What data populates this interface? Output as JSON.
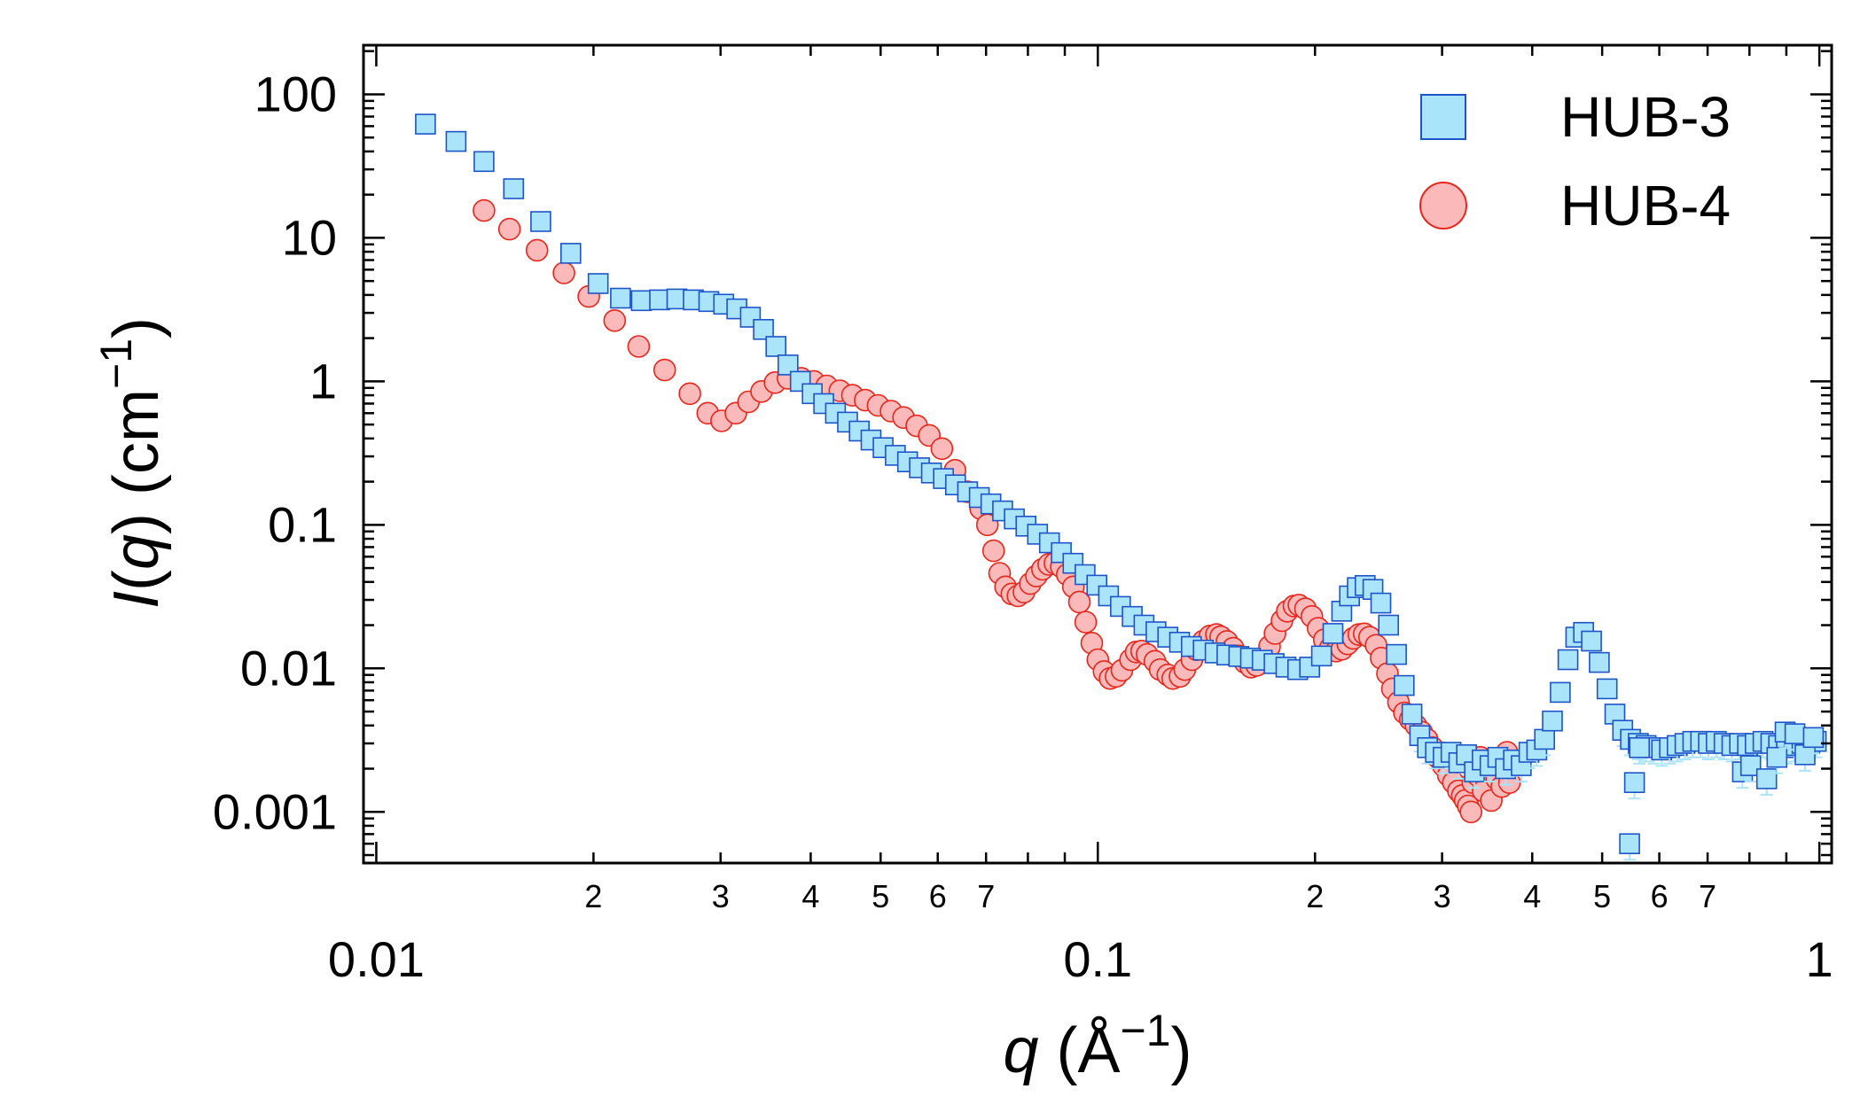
{
  "chart_data": {
    "type": "scatter",
    "xscale": "log",
    "yscale": "log",
    "xlim": [
      0.0096,
      1.04
    ],
    "ylim": [
      0.00044,
      220
    ],
    "xlabel": {
      "var": "q",
      "open": " (Å",
      "exp": "−1",
      "close": ")"
    },
    "ylabel": {
      "var": "I",
      "paren_open": "(",
      "arg": "q",
      "paren_close": ")",
      "unit_open": " (cm",
      "exp": "−1",
      "close": ")"
    },
    "x_major_ticks": [
      {
        "value": 0.01,
        "label": "0.01"
      },
      {
        "value": 0.1,
        "label": "0.1"
      },
      {
        "value": 1,
        "label": "1"
      }
    ],
    "x_minor_labels": [
      {
        "value": 0.02,
        "label": "2"
      },
      {
        "value": 0.03,
        "label": "3"
      },
      {
        "value": 0.04,
        "label": "4"
      },
      {
        "value": 0.05,
        "label": "5"
      },
      {
        "value": 0.06,
        "label": "6"
      },
      {
        "value": 0.07,
        "label": "7"
      },
      {
        "value": 0.2,
        "label": "2"
      },
      {
        "value": 0.3,
        "label": "3"
      },
      {
        "value": 0.4,
        "label": "4"
      },
      {
        "value": 0.5,
        "label": "5"
      },
      {
        "value": 0.6,
        "label": "6"
      },
      {
        "value": 0.7,
        "label": "7"
      }
    ],
    "y_major_ticks": [
      {
        "value": 0.001,
        "label": "0.001"
      },
      {
        "value": 0.01,
        "label": "0.01"
      },
      {
        "value": 0.1,
        "label": "0.1"
      },
      {
        "value": 1,
        "label": "1"
      },
      {
        "value": 10,
        "label": "10"
      },
      {
        "value": 100,
        "label": "100"
      }
    ],
    "legend": {
      "position": "top-right"
    },
    "series": [
      {
        "name": "HUB-4",
        "marker": "circle",
        "fill": "#fbb9b9",
        "edge": "#e8261c",
        "points": [
          [
            0.0141,
            15.5
          ],
          [
            0.0153,
            11.5
          ],
          [
            0.0167,
            8.2
          ],
          [
            0.0182,
            5.7
          ],
          [
            0.0197,
            3.9
          ],
          [
            0.0214,
            2.65
          ],
          [
            0.0231,
            1.75
          ],
          [
            0.0251,
            1.2
          ],
          [
            0.0272,
            0.82
          ],
          [
            0.0288,
            0.6
          ],
          [
            0.0301,
            0.53
          ],
          [
            0.0315,
            0.6
          ],
          [
            0.0328,
            0.72
          ],
          [
            0.0342,
            0.85
          ],
          [
            0.0357,
            0.98
          ],
          [
            0.0372,
            1.05
          ],
          [
            0.0388,
            1.05
          ],
          [
            0.0404,
            1.0
          ],
          [
            0.0421,
            0.93
          ],
          [
            0.0439,
            0.86
          ],
          [
            0.0457,
            0.8
          ],
          [
            0.0476,
            0.74
          ],
          [
            0.0496,
            0.68
          ],
          [
            0.0517,
            0.62
          ],
          [
            0.0538,
            0.56
          ],
          [
            0.0561,
            0.49
          ],
          [
            0.0584,
            0.42
          ],
          [
            0.0608,
            0.34
          ],
          [
            0.0634,
            0.24
          ],
          [
            0.066,
            0.17
          ],
          [
            0.0688,
            0.13
          ],
          [
            0.0703,
            0.1
          ],
          [
            0.0717,
            0.066
          ],
          [
            0.0731,
            0.046
          ],
          [
            0.0745,
            0.037
          ],
          [
            0.076,
            0.033
          ],
          [
            0.0775,
            0.032
          ],
          [
            0.079,
            0.034
          ],
          [
            0.0806,
            0.039
          ],
          [
            0.0822,
            0.044
          ],
          [
            0.0838,
            0.049
          ],
          [
            0.0855,
            0.053
          ],
          [
            0.0872,
            0.054
          ],
          [
            0.089,
            0.051
          ],
          [
            0.0907,
            0.045
          ],
          [
            0.0925,
            0.037
          ],
          [
            0.0943,
            0.029
          ],
          [
            0.0962,
            0.021
          ],
          [
            0.0981,
            0.015
          ],
          [
            0.1,
            0.0115
          ],
          [
            0.102,
            0.0095
          ],
          [
            0.104,
            0.0085
          ],
          [
            0.106,
            0.0088
          ],
          [
            0.108,
            0.0097
          ],
          [
            0.111,
            0.0115
          ],
          [
            0.113,
            0.013
          ],
          [
            0.115,
            0.0132
          ],
          [
            0.117,
            0.0125
          ],
          [
            0.12,
            0.0112
          ],
          [
            0.122,
            0.0098
          ],
          [
            0.125,
            0.009
          ],
          [
            0.127,
            0.0085
          ],
          [
            0.13,
            0.0088
          ],
          [
            0.132,
            0.0098
          ],
          [
            0.135,
            0.0115
          ],
          [
            0.137,
            0.0135
          ],
          [
            0.14,
            0.0155
          ],
          [
            0.143,
            0.0168
          ],
          [
            0.146,
            0.0172
          ],
          [
            0.148,
            0.0166
          ],
          [
            0.151,
            0.0154
          ],
          [
            0.154,
            0.0138
          ],
          [
            0.157,
            0.0122
          ],
          [
            0.16,
            0.011
          ],
          [
            0.163,
            0.0102
          ],
          [
            0.166,
            0.0105
          ],
          [
            0.17,
            0.0118
          ],
          [
            0.173,
            0.0142
          ],
          [
            0.176,
            0.0175
          ],
          [
            0.18,
            0.0215
          ],
          [
            0.183,
            0.025
          ],
          [
            0.187,
            0.0272
          ],
          [
            0.19,
            0.0276
          ],
          [
            0.194,
            0.026
          ],
          [
            0.198,
            0.023
          ],
          [
            0.202,
            0.019
          ],
          [
            0.206,
            0.0158
          ],
          [
            0.21,
            0.0138
          ],
          [
            0.214,
            0.0132
          ],
          [
            0.218,
            0.0136
          ],
          [
            0.222,
            0.0148
          ],
          [
            0.226,
            0.0162
          ],
          [
            0.23,
            0.0172
          ],
          [
            0.234,
            0.0174
          ],
          [
            0.238,
            0.0165
          ],
          [
            0.243,
            0.0145
          ],
          [
            0.247,
            0.0118
          ],
          [
            0.252,
            0.0092
          ],
          [
            0.256,
            0.0072
          ],
          [
            0.261,
            0.0058
          ],
          [
            0.266,
            0.0049
          ],
          [
            0.271,
            0.0044
          ],
          [
            0.276,
            0.004
          ],
          [
            0.281,
            0.0036
          ],
          [
            0.286,
            0.0032
          ],
          [
            0.291,
            0.0028
          ],
          [
            0.296,
            0.0024
          ],
          [
            0.301,
            0.0021
          ],
          [
            0.306,
            0.0018
          ],
          [
            0.311,
            0.0016
          ],
          [
            0.316,
            0.0014
          ],
          [
            0.32,
            0.0013
          ],
          [
            0.323,
            0.0012
          ],
          [
            0.326,
            0.0011
          ],
          [
            0.329,
            0.001
          ],
          [
            0.331,
            0.0016
          ],
          [
            0.333,
            0.0021
          ],
          [
            0.336,
            0.0018
          ],
          [
            0.339,
            0.0024
          ],
          [
            0.342,
            0.0014
          ],
          [
            0.345,
            0.0022
          ],
          [
            0.348,
            0.0019
          ],
          [
            0.351,
            0.0012
          ],
          [
            0.354,
            0.0023
          ],
          [
            0.357,
            0.0017
          ],
          [
            0.36,
            0.0021
          ],
          [
            0.363,
            0.0015
          ],
          [
            0.366,
            0.002
          ],
          [
            0.369,
            0.0026
          ],
          [
            0.372,
            0.0016
          ]
        ]
      },
      {
        "name": "HUB-3",
        "marker": "square",
        "fill": "#aae4fa",
        "edge": "#1d54c8",
        "points": [
          [
            0.0117,
            62
          ],
          [
            0.0129,
            47
          ],
          [
            0.0141,
            34
          ],
          [
            0.0155,
            22
          ],
          [
            0.0169,
            13
          ],
          [
            0.0186,
            7.8
          ],
          [
            0.0203,
            4.8
          ],
          [
            0.0218,
            3.8
          ],
          [
            0.0233,
            3.65
          ],
          [
            0.0247,
            3.7
          ],
          [
            0.0261,
            3.75
          ],
          [
            0.0275,
            3.7
          ],
          [
            0.0289,
            3.6
          ],
          [
            0.0303,
            3.45
          ],
          [
            0.0316,
            3.2
          ],
          [
            0.033,
            2.8
          ],
          [
            0.0344,
            2.3
          ],
          [
            0.0358,
            1.75
          ],
          [
            0.0372,
            1.3
          ],
          [
            0.0387,
            1.0
          ],
          [
            0.0402,
            0.82
          ],
          [
            0.0417,
            0.7
          ],
          [
            0.0433,
            0.6
          ],
          [
            0.045,
            0.52
          ],
          [
            0.0467,
            0.45
          ],
          [
            0.0485,
            0.39
          ],
          [
            0.0504,
            0.345
          ],
          [
            0.0524,
            0.305
          ],
          [
            0.0545,
            0.275
          ],
          [
            0.0566,
            0.25
          ],
          [
            0.0588,
            0.23
          ],
          [
            0.0611,
            0.21
          ],
          [
            0.0635,
            0.19
          ],
          [
            0.066,
            0.17
          ],
          [
            0.0685,
            0.155
          ],
          [
            0.0711,
            0.14
          ],
          [
            0.0738,
            0.125
          ],
          [
            0.0766,
            0.11
          ],
          [
            0.0795,
            0.098
          ],
          [
            0.0825,
            0.086
          ],
          [
            0.0857,
            0.075
          ],
          [
            0.089,
            0.064
          ],
          [
            0.0924,
            0.054
          ],
          [
            0.096,
            0.045
          ],
          [
            0.0997,
            0.038
          ],
          [
            0.1035,
            0.032
          ],
          [
            0.1075,
            0.027
          ],
          [
            0.1116,
            0.023
          ],
          [
            0.1159,
            0.02
          ],
          [
            0.1204,
            0.018
          ],
          [
            0.125,
            0.0165
          ],
          [
            0.1298,
            0.0152
          ],
          [
            0.1348,
            0.0142
          ],
          [
            0.14,
            0.0134
          ],
          [
            0.1454,
            0.0128
          ],
          [
            0.151,
            0.0124
          ],
          [
            0.1568,
            0.0121
          ],
          [
            0.1628,
            0.0118
          ],
          [
            0.169,
            0.0114
          ],
          [
            0.1755,
            0.0108
          ],
          [
            0.1823,
            0.0102
          ],
          [
            0.1893,
            0.0098
          ],
          [
            0.1966,
            0.0102
          ],
          [
            0.2042,
            0.0122
          ],
          [
            0.2118,
            0.0175
          ],
          [
            0.2178,
            0.025
          ],
          [
            0.2233,
            0.032
          ],
          [
            0.2289,
            0.0365
          ],
          [
            0.2347,
            0.0378
          ],
          [
            0.2406,
            0.0355
          ],
          [
            0.2467,
            0.0285
          ],
          [
            0.2529,
            0.02
          ],
          [
            0.2593,
            0.0125
          ],
          [
            0.2658,
            0.0076
          ],
          [
            0.2725,
            0.0048
          ],
          [
            0.2794,
            0.0034
          ],
          [
            0.2864,
            0.0028
          ],
          [
            0.2937,
            0.0026
          ],
          [
            0.3011,
            0.0024
          ],
          [
            0.3087,
            0.0026
          ],
          [
            0.3165,
            0.0022
          ],
          [
            0.3244,
            0.0025
          ],
          [
            0.3326,
            0.0019
          ],
          [
            0.341,
            0.0023
          ],
          [
            0.3496,
            0.0021
          ],
          [
            0.3584,
            0.0024
          ],
          [
            0.3674,
            0.002
          ],
          [
            0.3767,
            0.0023
          ],
          [
            0.3862,
            0.0021
          ],
          [
            0.3959,
            0.0026
          ],
          [
            0.4059,
            0.0027
          ],
          [
            0.4161,
            0.0032
          ],
          [
            0.4266,
            0.0043
          ],
          [
            0.4374,
            0.0068
          ],
          [
            0.4484,
            0.0115
          ],
          [
            0.4597,
            0.0165
          ],
          [
            0.4713,
            0.0178
          ],
          [
            0.4832,
            0.0155
          ],
          [
            0.4954,
            0.011
          ],
          [
            0.5079,
            0.0072
          ],
          [
            0.5207,
            0.0048
          ],
          [
            0.5338,
            0.0037
          ],
          [
            0.5473,
            0.0032
          ],
          [
            0.5611,
            0.003
          ],
          [
            0.5752,
            0.0029
          ],
          [
            0.5897,
            0.0028
          ],
          [
            0.6046,
            0.0027
          ],
          [
            0.6198,
            0.0028
          ],
          [
            0.6354,
            0.0029
          ],
          [
            0.6514,
            0.003
          ],
          [
            0.6678,
            0.0031
          ],
          [
            0.6847,
            0.0031
          ],
          [
            0.7019,
            0.003
          ],
          [
            0.7196,
            0.0031
          ],
          [
            0.7378,
            0.003
          ],
          [
            0.7564,
            0.0029
          ],
          [
            0.7754,
            0.003
          ],
          [
            0.795,
            0.0029
          ],
          [
            0.815,
            0.003
          ],
          [
            0.8355,
            0.0031
          ],
          [
            0.8566,
            0.003
          ],
          [
            0.8782,
            0.0029
          ],
          [
            0.9003,
            0.0028
          ],
          [
            0.923,
            0.0029
          ],
          [
            0.9463,
            0.003
          ],
          [
            0.9701,
            0.003
          ],
          [
            0.99,
            0.0031
          ],
          [
            0.5458,
            0.0006
          ],
          [
            0.5544,
            0.0016
          ],
          [
            0.5631,
            0.0028
          ],
          [
            0.7823,
            0.0019
          ],
          [
            0.8033,
            0.0021
          ],
          [
            0.8451,
            0.0017
          ],
          [
            0.8733,
            0.0024
          ],
          [
            0.8965,
            0.0036
          ],
          [
            0.925,
            0.0035
          ],
          [
            0.9553,
            0.0025
          ],
          [
            0.9812,
            0.0033
          ]
        ]
      }
    ]
  }
}
